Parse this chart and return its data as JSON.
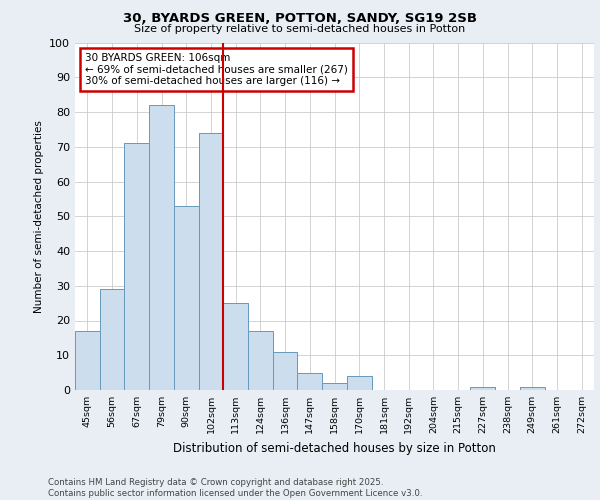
{
  "title1": "30, BYARDS GREEN, POTTON, SANDY, SG19 2SB",
  "title2": "Size of property relative to semi-detached houses in Potton",
  "xlabel": "Distribution of semi-detached houses by size in Potton",
  "ylabel": "Number of semi-detached properties",
  "footer": "Contains HM Land Registry data © Crown copyright and database right 2025.\nContains public sector information licensed under the Open Government Licence v3.0.",
  "categories": [
    "45sqm",
    "56sqm",
    "67sqm",
    "79sqm",
    "90sqm",
    "102sqm",
    "113sqm",
    "124sqm",
    "136sqm",
    "147sqm",
    "158sqm",
    "170sqm",
    "181sqm",
    "192sqm",
    "204sqm",
    "215sqm",
    "227sqm",
    "238sqm",
    "249sqm",
    "261sqm",
    "272sqm"
  ],
  "values": [
    17,
    29,
    71,
    82,
    53,
    74,
    25,
    17,
    11,
    5,
    2,
    4,
    0,
    0,
    0,
    0,
    1,
    0,
    1,
    0,
    0
  ],
  "bar_color": "#ccdded",
  "bar_edge_color": "#6699bb",
  "property_label": "30 BYARDS GREEN: 106sqm",
  "pct_smaller": 69,
  "n_smaller": 267,
  "pct_larger": 30,
  "n_larger": 116,
  "vline_bin_index": 5,
  "ylim": [
    0,
    100
  ],
  "yticks": [
    0,
    10,
    20,
    30,
    40,
    50,
    60,
    70,
    80,
    90,
    100
  ],
  "annotation_box_color": "#ffffff",
  "annotation_box_edge_color": "#cc0000",
  "vline_color": "#cc0000",
  "background_color": "#e8eef4",
  "plot_background_color": "#ffffff"
}
